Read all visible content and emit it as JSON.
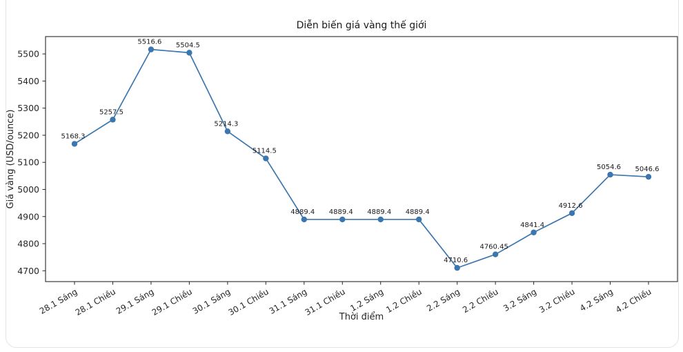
{
  "chart_data": {
    "type": "line",
    "title": "Diễn biến giá vàng thế giới",
    "xlabel": "Thời điểm",
    "ylabel": "Giá vàng (USD/ounce)",
    "categories": [
      "28.1 Sáng",
      "28.1 Chiều",
      "29.1 Sáng",
      "29.1 Chiều",
      "30.1 Sáng",
      "30.1 Chiều",
      "31.1 Sáng",
      "31.1 Chiều",
      "1.2 Sáng",
      "1.2 Chiều",
      "2.2 Sáng",
      "2.2 Chiều",
      "3.2 Sáng",
      "3.2 Chiều",
      "4.2 Sáng",
      "4.2 Chiều"
    ],
    "values": [
      5168.3,
      5257.5,
      5516.6,
      5504.5,
      5214.3,
      5114.5,
      4889.4,
      4889.4,
      4889.4,
      4889.4,
      4710.6,
      4760.45,
      4841.4,
      4912.6,
      5054.6,
      5046.6
    ],
    "point_labels": [
      "5168.3",
      "5257.5",
      "5516.6",
      "5504.5",
      "5214.3",
      "5114.5",
      "4889.4",
      "4889.4",
      "4889.4",
      "4889.4",
      "4710.6",
      "4760.45",
      "4841.4",
      "4912.6",
      "5054.6",
      "5046.6"
    ],
    "yticks": [
      4700,
      4800,
      4900,
      5000,
      5100,
      5200,
      5300,
      5400,
      5500
    ],
    "ylim": [
      4660,
      5564
    ],
    "grid": false,
    "legend": "none",
    "xtick_rotation": -30,
    "line_color": "#3b76af",
    "marker_color": "#3b76af",
    "axis_color": "#262626",
    "label_color": "#1a1a1a"
  }
}
